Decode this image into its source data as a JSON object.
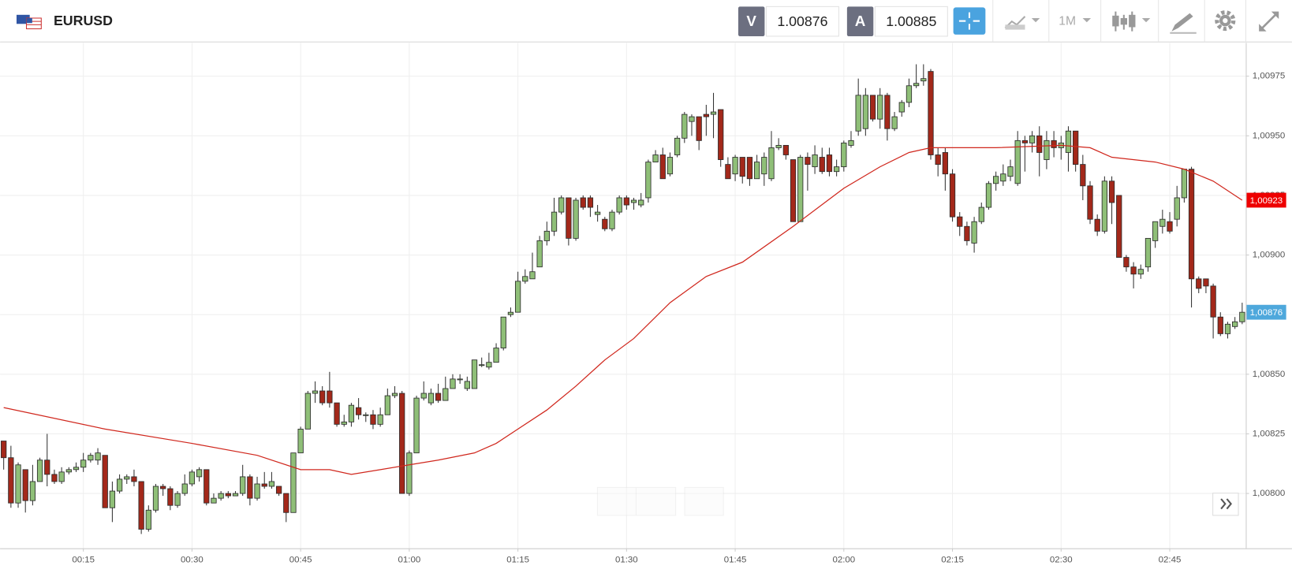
{
  "header": {
    "symbol": "EURUSD",
    "bid_label": "V",
    "bid": "1.00876",
    "ask_label": "A",
    "ask": "1.00885",
    "timeframe": "1M"
  },
  "chart_data": {
    "type": "candlestick",
    "up_color": "#8fbf78",
    "down_color": "#a3281a",
    "grid": true,
    "categories": [
      null,
      null,
      null,
      null,
      null,
      null,
      null,
      null,
      null,
      null,
      null,
      "00:15",
      null,
      null,
      null,
      null,
      null,
      null,
      null,
      null,
      null,
      null,
      null,
      null,
      null,
      null,
      "00:30",
      null,
      null,
      null,
      null,
      null,
      null,
      null,
      null,
      null,
      null,
      null,
      null,
      null,
      null,
      "00:45",
      null,
      null,
      null,
      null,
      null,
      null,
      null,
      null,
      null,
      null,
      null,
      null,
      null,
      null,
      "01:00",
      null,
      null,
      null,
      null,
      null,
      null,
      null,
      null,
      null,
      null,
      null,
      null,
      null,
      null,
      "01:15",
      null,
      null,
      null,
      null,
      null,
      null,
      null,
      null,
      null,
      null,
      null,
      null,
      null,
      null,
      "01:30",
      null,
      null,
      null,
      null,
      null,
      null,
      null,
      null,
      null,
      null,
      null,
      null,
      null,
      null,
      "01:45",
      null,
      null,
      null,
      null,
      null,
      null,
      null,
      null,
      null,
      null,
      null,
      null,
      null,
      null,
      "02:00",
      null,
      null,
      null,
      null,
      null,
      null,
      null,
      null,
      null,
      null,
      null,
      null,
      null,
      null,
      "02:15",
      null,
      null,
      null,
      null,
      null,
      null,
      null,
      null,
      null,
      null,
      null,
      null,
      null,
      null,
      "02:30",
      null,
      null,
      null,
      null,
      null,
      null,
      null,
      null,
      null,
      null,
      null,
      null,
      null,
      null,
      "02:45",
      null,
      null,
      null,
      null,
      null,
      null,
      null,
      null,
      null,
      null
    ],
    "open": [
      1.00822,
      1.00815,
      1.00796,
      1.0081,
      1.00797,
      1.00805,
      1.00814,
      1.00808,
      1.00805,
      1.00809,
      1.0081,
      1.00811,
      1.00814,
      1.00814,
      1.00816,
      1.00794,
      1.00801,
      1.00806,
      1.00807,
      1.00805,
      1.00785,
      1.00793,
      1.00803,
      1.00802,
      1.00795,
      1.008,
      1.00804,
      1.00807,
      1.0081,
      1.00796,
      1.00798,
      1.008,
      1.00799,
      1.008,
      1.00807,
      1.00798,
      1.00804,
      1.00803,
      1.00803,
      1.008,
      1.00792,
      1.00817,
      1.00827,
      1.00842,
      1.00843,
      1.00843,
      1.00838,
      1.00829,
      1.0083,
      1.00836,
      1.00833,
      1.00833,
      1.00829,
      1.00833,
      1.00841,
      1.00842,
      1.008,
      1.00817,
      1.0084,
      1.00838,
      1.00842,
      1.00839,
      1.00844,
      1.00848,
      1.00844,
      1.00844,
      1.00854,
      1.00853,
      1.00855,
      1.00861,
      1.00875,
      1.00876,
      1.00889,
      1.0089,
      1.00895,
      1.00906,
      1.0091,
      1.00918,
      1.00924,
      1.00907,
      1.00924,
      1.00924,
      1.00917,
      1.00915,
      1.00911,
      1.00918,
      1.00924,
      1.00922,
      1.00921,
      1.00924,
      1.00939,
      1.00942,
      1.00934,
      1.00942,
      1.00949,
      1.00956,
      1.00958,
      1.00959,
      1.00959,
      1.00961,
      1.00938,
      1.00934,
      1.00941,
      1.00941,
      1.00932,
      1.00934,
      1.00932,
      1.00945,
      1.00946,
      1.0094,
      1.00914,
      1.00941,
      1.00937,
      1.00941,
      1.00942,
      1.00935,
      1.00937,
      1.00946,
      1.00952,
      1.00953,
      1.00967,
      1.00957,
      1.00967,
      1.00953,
      1.0096,
      1.00964,
      1.00971,
      1.00973,
      1.00977,
      1.00942,
      1.00943,
      1.00934,
      1.00916,
      1.00912,
      1.00905,
      1.00914,
      1.0092,
      1.0093,
      1.00931,
      1.00933,
      1.0093,
      1.00948,
      1.00947,
      1.0095,
      1.0094,
      1.00948,
      1.00945,
      1.00943,
      1.00952,
      1.00938,
      1.00929,
      1.00915,
      1.0091,
      1.00931,
      1.00925,
      1.00899,
      1.00895,
      1.00892,
      1.00895,
      1.00906,
      1.00912,
      1.00914,
      1.00915,
      1.00924,
      1.00936,
      1.0089,
      1.0089,
      1.00887,
      1.00874,
      1.00867,
      1.0087,
      1.00872
    ],
    "high": [
      1.00822,
      1.0082,
      1.00813,
      1.0081,
      1.00812,
      1.00815,
      1.00825,
      1.0081,
      1.00811,
      1.00811,
      1.00813,
      1.00817,
      1.00817,
      1.00819,
      1.00816,
      1.00805,
      1.00808,
      1.00808,
      1.0081,
      1.00805,
      1.00795,
      1.00804,
      1.00804,
      1.00803,
      1.00801,
      1.00808,
      1.0081,
      1.00811,
      1.0081,
      1.008,
      1.00801,
      1.00801,
      1.00801,
      1.00812,
      1.00808,
      1.00807,
      1.00809,
      1.00809,
      1.00803,
      1.008,
      1.00817,
      1.00828,
      1.00843,
      1.00847,
      1.00845,
      1.00851,
      1.00838,
      1.00833,
      1.00838,
      1.0084,
      1.00834,
      1.00835,
      1.00836,
      1.00844,
      1.00845,
      1.00843,
      1.00818,
      1.00841,
      1.00847,
      1.00844,
      1.00846,
      1.00849,
      1.0085,
      1.0085,
      1.00849,
      1.00856,
      1.00857,
      1.00859,
      1.00863,
      1.00874,
      1.00878,
      1.00893,
      1.00894,
      1.00901,
      1.00908,
      1.00914,
      1.00924,
      1.00925,
      1.00924,
      1.00924,
      1.00925,
      1.00925,
      1.00921,
      1.00916,
      1.00919,
      1.00925,
      1.00925,
      1.00924,
      1.00926,
      1.0094,
      1.00944,
      1.00945,
      1.00943,
      1.0095,
      1.0096,
      1.00959,
      1.00958,
      1.00963,
      1.00968,
      1.00961,
      1.00941,
      1.00942,
      1.00941,
      1.00941,
      1.00942,
      1.00943,
      1.00952,
      1.00949,
      1.00946,
      1.0094,
      1.00942,
      1.00943,
      1.00946,
      1.00945,
      1.00945,
      1.0094,
      1.00948,
      1.00952,
      1.00974,
      1.0097,
      1.00967,
      1.0097,
      1.00968,
      1.0096,
      1.00965,
      1.00974,
      1.0098,
      1.0098,
      1.00978,
      1.00945,
      1.00945,
      1.00936,
      1.00918,
      1.00914,
      1.00916,
      1.00922,
      1.00931,
      1.00935,
      1.00938,
      1.0094,
      1.00952,
      1.0095,
      1.00952,
      1.00954,
      1.00952,
      1.00952,
      1.0095,
      1.00954,
      1.00952,
      1.00942,
      1.00931,
      1.00917,
      1.00933,
      1.00933,
      1.00925,
      1.009,
      1.00897,
      1.00896,
      1.00907,
      1.00914,
      1.00919,
      1.00918,
      1.00929,
      1.00936,
      1.00937,
      1.00891,
      1.0089,
      1.00888,
      1.00876,
      1.00872,
      1.00874,
      1.0088
    ],
    "low": [
      1.0081,
      1.00794,
      1.00794,
      1.00792,
      1.00795,
      1.00805,
      1.00803,
      1.00804,
      1.00804,
      1.00808,
      1.00809,
      1.00809,
      1.00813,
      1.00812,
      1.00794,
      1.00788,
      1.008,
      1.00804,
      1.00803,
      1.00783,
      1.00784,
      1.00792,
      1.00799,
      1.00793,
      1.00794,
      1.00799,
      1.00803,
      1.00805,
      1.00795,
      1.00796,
      1.00797,
      1.00798,
      1.00799,
      1.00799,
      1.00795,
      1.00797,
      1.00802,
      1.00802,
      1.00799,
      1.00788,
      1.00792,
      1.00817,
      1.00827,
      1.00838,
      1.00837,
      1.00836,
      1.00828,
      1.00828,
      1.00828,
      1.00831,
      1.0083,
      1.00827,
      1.00828,
      1.00833,
      1.0084,
      1.008,
      1.00799,
      1.00817,
      1.00839,
      1.00837,
      1.00838,
      1.00839,
      1.00844,
      1.00846,
      1.00843,
      1.00844,
      1.00853,
      1.00852,
      1.00855,
      1.0086,
      1.00874,
      1.00876,
      1.00888,
      1.0089,
      1.00895,
      1.00904,
      1.00908,
      1.00917,
      1.00904,
      1.00906,
      1.00919,
      1.00916,
      1.00914,
      1.0091,
      1.0091,
      1.00917,
      1.00919,
      1.00919,
      1.0092,
      1.00922,
      1.00939,
      1.00932,
      1.00933,
      1.00941,
      1.00947,
      1.0095,
      1.00944,
      1.0095,
      1.00949,
      1.00937,
      1.00932,
      1.00931,
      1.0093,
      1.00929,
      1.00932,
      1.00929,
      1.00931,
      1.00944,
      1.0094,
      1.00914,
      1.00914,
      1.00927,
      1.00934,
      1.00934,
      1.00933,
      1.00933,
      1.00935,
      1.00945,
      1.0095,
      1.0095,
      1.00956,
      1.00953,
      1.00948,
      1.00952,
      1.00958,
      1.00962,
      1.0097,
      1.00971,
      1.0094,
      1.00933,
      1.00927,
      1.00914,
      1.00908,
      1.00904,
      1.00901,
      1.00913,
      1.00919,
      1.00927,
      1.00929,
      1.00931,
      1.00929,
      1.00935,
      1.00943,
      1.00933,
      1.00936,
      1.00941,
      1.0094,
      1.00935,
      1.00935,
      1.00923,
      1.00913,
      1.00908,
      1.00909,
      1.00913,
      1.00899,
      1.00893,
      1.00886,
      1.0089,
      1.00893,
      1.00903,
      1.00909,
      1.00909,
      1.00912,
      1.00922,
      1.00878,
      1.00884,
      1.00884,
      1.00865,
      1.00866,
      1.00865,
      1.00869,
      1.00871
    ],
    "close": [
      1.00815,
      1.00796,
      1.00812,
      1.00797,
      1.00805,
      1.00814,
      1.00808,
      1.00805,
      1.00809,
      1.0081,
      1.00811,
      1.00814,
      1.00816,
      1.00817,
      1.00794,
      1.00801,
      1.00806,
      1.00807,
      1.00805,
      1.00785,
      1.00793,
      1.00803,
      1.00802,
      1.00795,
      1.008,
      1.00804,
      1.00809,
      1.0081,
      1.00796,
      1.00798,
      1.008,
      1.00799,
      1.008,
      1.00807,
      1.00798,
      1.00804,
      1.00803,
      1.00805,
      1.008,
      1.00792,
      1.00817,
      1.00827,
      1.00842,
      1.00843,
      1.00838,
      1.00838,
      1.00829,
      1.0083,
      1.00837,
      1.00833,
      1.00833,
      1.00829,
      1.00833,
      1.00841,
      1.00842,
      1.008,
      1.00817,
      1.0084,
      1.00842,
      1.00842,
      1.00839,
      1.00844,
      1.00848,
      1.00848,
      1.00847,
      1.00856,
      1.00854,
      1.00855,
      1.00861,
      1.00874,
      1.00876,
      1.00889,
      1.00891,
      1.00893,
      1.00906,
      1.0091,
      1.00918,
      1.00924,
      1.00907,
      1.00923,
      1.0092,
      1.0092,
      1.00918,
      1.00911,
      1.00918,
      1.00924,
      1.00921,
      1.00923,
      1.00923,
      1.00939,
      1.00942,
      1.00932,
      1.00941,
      1.00949,
      1.00959,
      1.00958,
      1.00948,
      1.00958,
      1.0096,
      1.0094,
      1.00932,
      1.00941,
      1.00933,
      1.00932,
      1.00939,
      1.00941,
      1.00945,
      1.00946,
      1.00942,
      1.00914,
      1.00941,
      1.00938,
      1.00942,
      1.00935,
      1.00935,
      1.00937,
      1.00947,
      1.00948,
      1.00967,
      1.00967,
      1.00957,
      1.00967,
      1.00953,
      1.00958,
      1.00964,
      1.00971,
      1.00972,
      1.00974,
      1.00942,
      1.00938,
      1.00934,
      1.00916,
      1.00912,
      1.00906,
      1.00914,
      1.0092,
      1.0093,
      1.00933,
      1.00934,
      1.00937,
      1.00948,
      1.00947,
      1.0095,
      1.00943,
      1.00948,
      1.00945,
      1.00947,
      1.00952,
      1.00938,
      1.00929,
      1.00915,
      1.0091,
      1.00931,
      1.00922,
      1.00899,
      1.00895,
      1.00892,
      1.00894,
      1.00907,
      1.00914,
      1.00915,
      1.0091,
      1.00924,
      1.00936,
      1.0089,
      1.00886,
      1.00887,
      1.00874,
      1.00867,
      1.00871,
      1.00872,
      1.00876
    ],
    "moving_average": {
      "color": "#d0271d",
      "x": [
        0,
        14,
        26,
        35,
        41,
        45,
        48,
        52,
        56,
        60,
        65,
        68,
        71,
        75,
        79,
        83,
        87,
        92,
        97,
        102,
        109,
        116,
        121,
        125,
        128,
        137,
        146,
        150,
        153,
        159,
        163,
        167,
        171
      ],
      "values": [
        1.00836,
        1.00827,
        1.00821,
        1.00816,
        1.0081,
        1.0081,
        1.00808,
        1.0081,
        1.00812,
        1.00814,
        1.00817,
        1.00821,
        1.00827,
        1.00835,
        1.00845,
        1.00856,
        1.00865,
        1.0088,
        1.00891,
        1.00897,
        1.00912,
        1.00928,
        1.00937,
        1.00943,
        1.00945,
        1.00945,
        1.00946,
        1.00945,
        1.00941,
        1.00939,
        1.00936,
        1.00931,
        1.00923
      ]
    },
    "ylim": [
      1.00777,
      1.00989
    ],
    "yticks": [
      {
        "value": 1.008,
        "label": "1,00800"
      },
      {
        "value": 1.00825,
        "label": "1,00825"
      },
      {
        "value": 1.0085,
        "label": "1,00850"
      },
      {
        "value": 1.00875,
        "label": "1,00875"
      },
      {
        "value": 1.009,
        "label": "1,00900"
      },
      {
        "value": 1.00925,
        "label": "1,00925"
      },
      {
        "value": 1.0095,
        "label": "1,00950"
      },
      {
        "value": 1.00975,
        "label": "1,00975"
      }
    ],
    "price_markers": [
      {
        "value": 1.00923,
        "label": "1,00923",
        "color": "#ee0000"
      },
      {
        "value": 1.00876,
        "label": "1,00876",
        "color": "#4ea8dc"
      }
    ]
  }
}
